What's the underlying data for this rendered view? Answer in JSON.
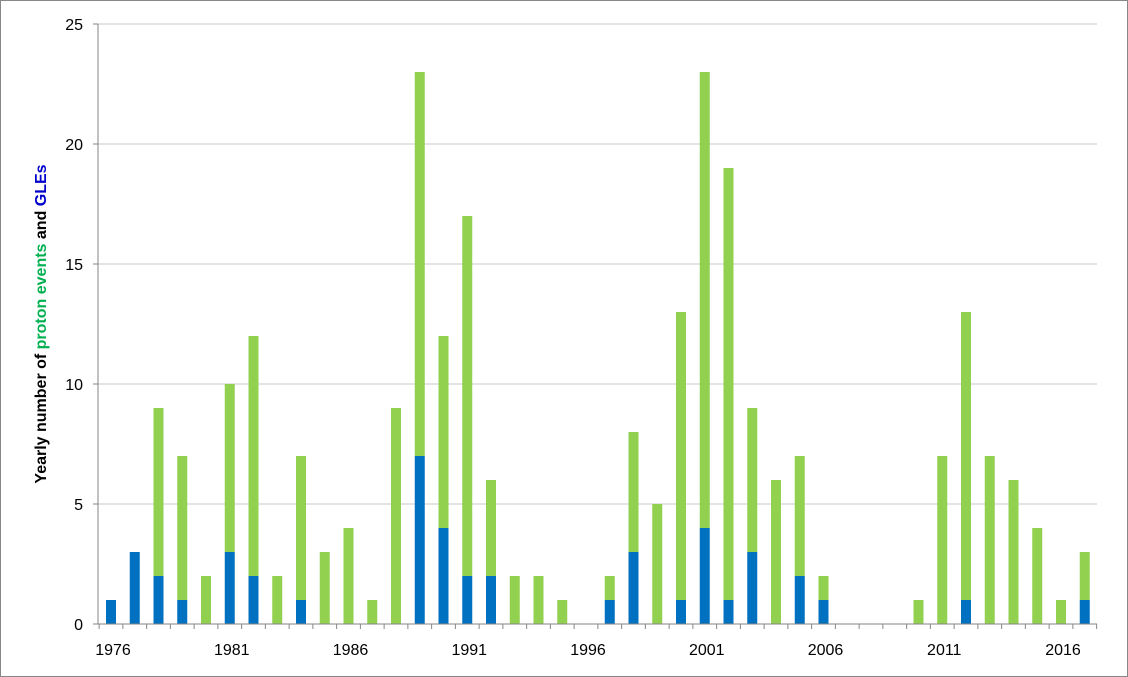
{
  "chart_data": {
    "type": "bar",
    "stacked": true,
    "ylabel_parts": [
      {
        "text": "Yearly number of ",
        "color": "#000000"
      },
      {
        "text": "proton events",
        "color": "#00b050"
      },
      {
        "text": " and ",
        "color": "#000000"
      },
      {
        "text": "GLEs",
        "color": "#0000cc"
      }
    ],
    "ylim": [
      0,
      25
    ],
    "yticks": [
      "0",
      "5",
      "10",
      "15",
      "20",
      "25"
    ],
    "xticks": [
      "1976",
      "1981",
      "1986",
      "1991",
      "1996",
      "2001",
      "2006",
      "2011",
      "2016"
    ],
    "grid": true,
    "years": [
      1976,
      1977,
      1978,
      1979,
      1980,
      1981,
      1982,
      1983,
      1984,
      1985,
      1986,
      1987,
      1988,
      1989,
      1990,
      1991,
      1992,
      1993,
      1994,
      1995,
      1996,
      1997,
      1998,
      1999,
      2000,
      2001,
      2002,
      2003,
      2004,
      2005,
      2006,
      2007,
      2008,
      2009,
      2010,
      2011,
      2012,
      2013,
      2014,
      2015,
      2016,
      2017
    ],
    "series": [
      {
        "color": "#0070c0",
        "values": [
          1,
          3,
          2,
          1,
          0,
          3,
          2,
          0,
          1,
          0,
          0,
          0,
          0,
          7,
          4,
          2,
          2,
          0,
          0,
          0,
          0,
          1,
          3,
          0,
          1,
          4,
          1,
          3,
          0,
          2,
          1,
          0,
          0,
          0,
          0,
          0,
          1,
          0,
          0,
          0,
          0,
          1
        ]
      },
      {
        "color": "#92d050",
        "total_values": [
          1,
          3,
          9,
          7,
          2,
          10,
          12,
          2,
          7,
          3,
          4,
          1,
          9,
          23,
          12,
          17,
          6,
          2,
          2,
          1,
          0,
          2,
          8,
          5,
          13,
          23,
          19,
          9,
          6,
          7,
          2,
          0,
          0,
          0,
          1,
          7,
          13,
          7,
          6,
          4,
          1,
          3
        ]
      }
    ]
  }
}
